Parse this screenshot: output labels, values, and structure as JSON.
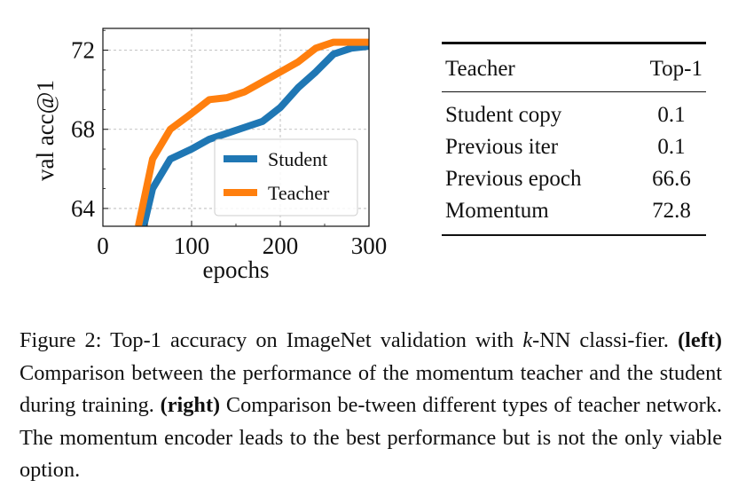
{
  "chart_data": {
    "type": "line",
    "xlabel": "epochs",
    "ylabel": "val acc@1",
    "xlim": [
      0,
      300
    ],
    "ylim": [
      63.1,
      73.1
    ],
    "xticks": [
      "0",
      "100",
      "200",
      "300"
    ],
    "yticks": [
      "64",
      "68",
      "72"
    ],
    "grid": true,
    "legend": "lower right",
    "series": [
      {
        "name": "Student",
        "color": "#1f77b4",
        "x": [
          46,
          56,
          76,
          100,
          120,
          140,
          160,
          180,
          200,
          220,
          240,
          260,
          280,
          300
        ],
        "y": [
          63.1,
          65.0,
          66.5,
          67.0,
          67.5,
          67.8,
          68.1,
          68.4,
          69.1,
          70.1,
          70.9,
          71.8,
          72.1,
          72.2
        ]
      },
      {
        "name": "Teacher",
        "color": "#ff7f0e",
        "x": [
          40,
          56,
          76,
          100,
          120,
          140,
          160,
          180,
          200,
          220,
          240,
          260,
          280,
          300
        ],
        "y": [
          63.1,
          66.5,
          68.0,
          68.8,
          69.5,
          69.6,
          69.9,
          70.4,
          70.9,
          71.4,
          72.1,
          72.4,
          72.4,
          72.4
        ]
      }
    ]
  },
  "table": {
    "headers": [
      "Teacher",
      "Top-1"
    ],
    "rows": [
      [
        "Student copy",
        "0.1"
      ],
      [
        "Previous iter",
        "0.1"
      ],
      [
        "Previous epoch",
        "66.6"
      ],
      [
        "Momentum",
        "72.8"
      ]
    ]
  },
  "caption": {
    "lead": "Figure 2: Top-1 accuracy on ImageNet validation with ",
    "k": "k",
    "after_k": "-NN classi-fier. ",
    "left_label": "(left)",
    "left_text": " Comparison between the performance of the momentum teacher and the student during training. ",
    "right_label": "(right)",
    "right_text": " Comparison be-tween different types of teacher network. The momentum encoder leads to the best performance but is not the only viable option."
  }
}
